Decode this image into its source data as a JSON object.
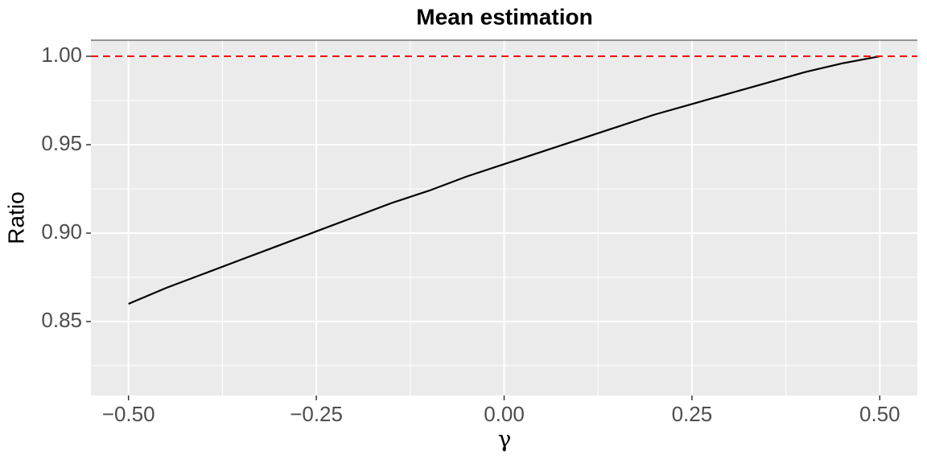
{
  "chart_data": {
    "type": "line",
    "title": "Mean estimation",
    "x_label": "γ",
    "y_label": "Ratio",
    "x": [
      -0.5,
      -0.45,
      -0.4,
      -0.35,
      -0.3,
      -0.25,
      -0.2,
      -0.15,
      -0.1,
      -0.05,
      0,
      0.05,
      0.1,
      0.15,
      0.2,
      0.25,
      0.3,
      0.35,
      0.4,
      0.45,
      0.5
    ],
    "series": [
      {
        "name": "Ratio",
        "color": "#000000",
        "values": [
          0.86,
          0.869,
          0.877,
          0.885,
          0.893,
          0.901,
          0.909,
          0.917,
          0.924,
          0.932,
          0.939,
          0.946,
          0.953,
          0.96,
          0.967,
          0.973,
          0.979,
          0.985,
          0.991,
          0.996,
          1.0
        ]
      }
    ],
    "reference_line": {
      "y": 1.0,
      "color": "#ff0000",
      "dashed": true
    },
    "xlim": [
      -0.55,
      0.55
    ],
    "ylim": [
      0.8082,
      1.0091
    ],
    "xticks": [
      {
        "value": -0.5,
        "label": "−0.50"
      },
      {
        "value": -0.25,
        "label": "−0.25"
      },
      {
        "value": 0,
        "label": "0.00"
      },
      {
        "value": 0.25,
        "label": "0.25"
      },
      {
        "value": 0.5,
        "label": "0.50"
      }
    ],
    "yticks": [
      {
        "value": 0.85,
        "label": "0.85"
      },
      {
        "value": 0.9,
        "label": "0.90"
      },
      {
        "value": 0.95,
        "label": "0.95"
      },
      {
        "value": 1.0,
        "label": "1.00"
      }
    ],
    "grid": true
  }
}
